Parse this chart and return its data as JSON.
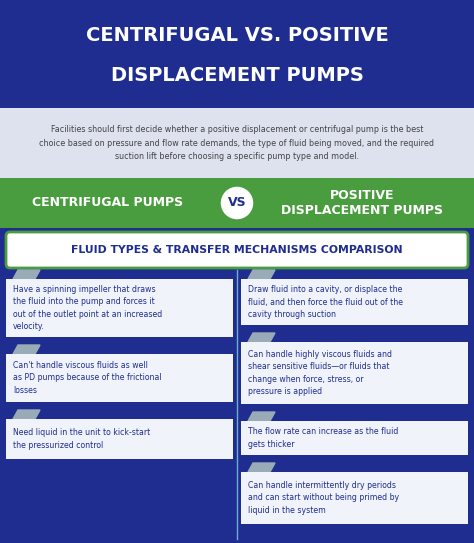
{
  "title_line1": "CENTRIFUGAL VS. POSITIVE",
  "title_line2": "DISPLACEMENT PUMPS",
  "title_bg": "#1e2d8f",
  "title_text_color": "#ffffff",
  "subtitle": "Facilities should first decide whether a positive displacement or centrifugal pump is the best\nchoice based on pressure and flow rate demands, the type of fluid being moved, and the required\nsuction lift before choosing a specific pump type and model.",
  "subtitle_bg": "#dde2ee",
  "subtitle_text_color": "#444444",
  "vs_bar_bg": "#4a9d3f",
  "vs_bar_text_color": "#ffffff",
  "vs_left": "CENTRIFUGAL PUMPS",
  "vs_right": "POSITIVE\nDISPLACEMENT PUMPS",
  "vs_circle_bg": "#ffffff",
  "vs_circle_text": "VS",
  "vs_circle_text_color": "#1e2d8f",
  "section_label": "FLUID TYPES & TRANSFER MECHANISMS COMPARISON",
  "section_label_bg": "#ffffff",
  "section_label_border": "#4a9d3f",
  "section_label_text_color": "#1e2d8f",
  "main_bg": "#1e2d8f",
  "card_bg": "#f0f3fa",
  "card_text_color": "#1e2d8f",
  "left_cards": [
    "Have a spinning impeller that draws\nthe fluid into the pump and forces it\nout of the outlet point at an increased\nvelocity.",
    "Can't handle viscous fluids as well\nas PD pumps because of the frictional\nlosses",
    "Need liquid in the unit to kick-start\nthe pressurized control"
  ],
  "right_cards": [
    "Draw fluid into a cavity, or displace the\nfluid, and then force the fluid out of the\ncavity through suction",
    "Can handle highly viscous fluids and\nshear sensitive fluids—or fluids that\nchange when force, stress, or\npressure is applied",
    "The flow rate can increase as the fluid\ngets thicker",
    "Can handle intermittently dry periods\nand can start without being primed by\nliquid in the system"
  ],
  "divider_color": "#6ab0d4",
  "arrow_color": "#9aabb8",
  "fig_w": 4.74,
  "fig_h": 5.43,
  "dpi": 100
}
